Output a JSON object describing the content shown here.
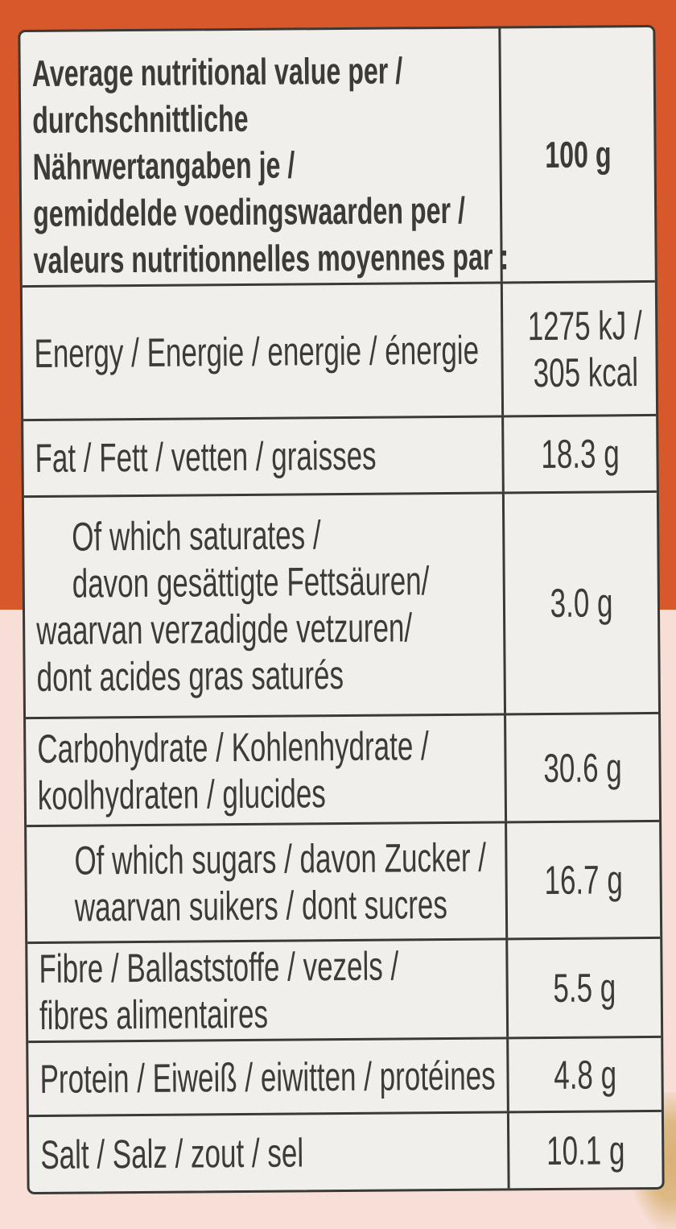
{
  "colors": {
    "background_top": "#D7582B",
    "background_bottom": "#F7DED6",
    "label_background": "#F1EFEC",
    "grid_line": "#3A3935",
    "text": "#3C3B38"
  },
  "nutrition_table": {
    "header": {
      "title_lines": [
        "Average nutritional value per /",
        "durchschnittliche",
        "Nährwertangaben je /",
        "gemiddelde voedingswaarden per /",
        "valeurs nutritionnelles moyennes par :"
      ],
      "amount_per": "100 g"
    },
    "rows": [
      {
        "key": "energy",
        "label_lines": [
          "Energy / Energie / energie / énergie"
        ],
        "value_lines": [
          "1275 kJ /",
          "305 kcal"
        ],
        "indented_lines": []
      },
      {
        "key": "fat",
        "label_lines": [
          "Fat / Fett / vetten / graisses"
        ],
        "value_lines": [
          "18.3 g"
        ],
        "indented_lines": []
      },
      {
        "key": "saturates",
        "label_lines": [
          "Of which saturates /",
          "davon gesättigte Fettsäuren/",
          "waarvan verzadigde vetzuren/",
          "dont acides gras saturés"
        ],
        "value_lines": [
          "3.0 g"
        ],
        "indented_lines": [
          0,
          1
        ]
      },
      {
        "key": "carbohydrate",
        "label_lines": [
          "Carbohydrate / Kohlenhydrate /",
          "koolhydraten / glucides"
        ],
        "value_lines": [
          "30.6 g"
        ],
        "indented_lines": []
      },
      {
        "key": "sugars",
        "label_lines": [
          "Of which sugars / davon Zucker /",
          "waarvan suikers / dont sucres"
        ],
        "value_lines": [
          "16.7 g"
        ],
        "indented_lines": [
          0,
          1
        ]
      },
      {
        "key": "fibre",
        "label_lines": [
          "Fibre / Ballaststoffe / vezels /",
          "fibres alimentaires"
        ],
        "value_lines": [
          "5.5 g"
        ],
        "indented_lines": []
      },
      {
        "key": "protein",
        "label_lines": [
          "Protein / Eiweiß / eiwitten / protéines"
        ],
        "value_lines": [
          "4.8 g"
        ],
        "indented_lines": []
      },
      {
        "key": "salt",
        "label_lines": [
          "Salt / Salz / zout / sel"
        ],
        "value_lines": [
          "10.1 g"
        ],
        "indented_lines": []
      }
    ]
  }
}
